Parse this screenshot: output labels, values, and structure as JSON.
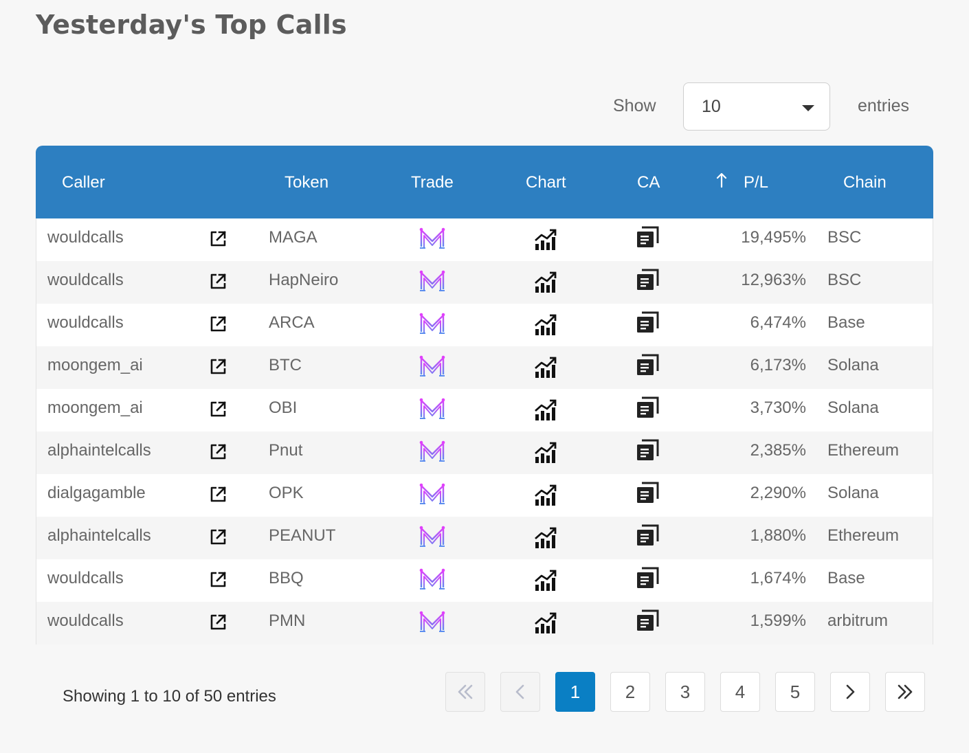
{
  "page_title": "Yesterday's Top Calls",
  "length_menu": {
    "show_label": "Show",
    "entries_label": "entries",
    "selected": "10"
  },
  "table": {
    "headers": {
      "caller": "Caller",
      "token": "Token",
      "trade": "Trade",
      "chart": "Chart",
      "ca": "CA",
      "pl": "P/L",
      "chain": "Chain"
    },
    "sorted_column": "P/L",
    "sort_direction_icon": "arrow-up-icon",
    "row_icons": {
      "external": "external-link-icon",
      "trade": "trade-logo-icon",
      "chart": "chart-trend-icon",
      "ca": "copy-icon"
    },
    "rows": [
      {
        "caller": "wouldcalls",
        "token": "MAGA",
        "pl": "19,495%",
        "chain": "BSC"
      },
      {
        "caller": "wouldcalls",
        "token": "HapNeiro",
        "pl": "12,963%",
        "chain": "BSC"
      },
      {
        "caller": "wouldcalls",
        "token": "ARCA",
        "pl": "6,474%",
        "chain": "Base"
      },
      {
        "caller": "moongem_ai",
        "token": "BTC",
        "pl": "6,173%",
        "chain": "Solana"
      },
      {
        "caller": "moongem_ai",
        "token": "OBI",
        "pl": "3,730%",
        "chain": "Solana"
      },
      {
        "caller": "alphaintelcalls",
        "token": "Pnut",
        "pl": "2,385%",
        "chain": "Ethereum"
      },
      {
        "caller": "dialgagamble",
        "token": "OPK",
        "pl": "2,290%",
        "chain": "Solana"
      },
      {
        "caller": "alphaintelcalls",
        "token": "PEANUT",
        "pl": "1,880%",
        "chain": "Ethereum"
      },
      {
        "caller": "wouldcalls",
        "token": "BBQ",
        "pl": "1,674%",
        "chain": "Base"
      },
      {
        "caller": "wouldcalls",
        "token": "PMN",
        "pl": "1,599%",
        "chain": "arbitrum"
      }
    ]
  },
  "info": "Showing 1 to 10 of 50 entries",
  "pagination": {
    "first_icon": "double-chevron-left-icon",
    "prev_icon": "chevron-left-icon",
    "pages": [
      "1",
      "2",
      "3",
      "4",
      "5"
    ],
    "current": "1",
    "next_icon": "chevron-right-icon",
    "last_icon": "double-chevron-right-icon"
  },
  "colors": {
    "header_bg": "#2d7fc1",
    "active_page": "#0a7fc4",
    "trade_logo_pink": "#e040fb",
    "trade_logo_blue": "#5b8def"
  }
}
